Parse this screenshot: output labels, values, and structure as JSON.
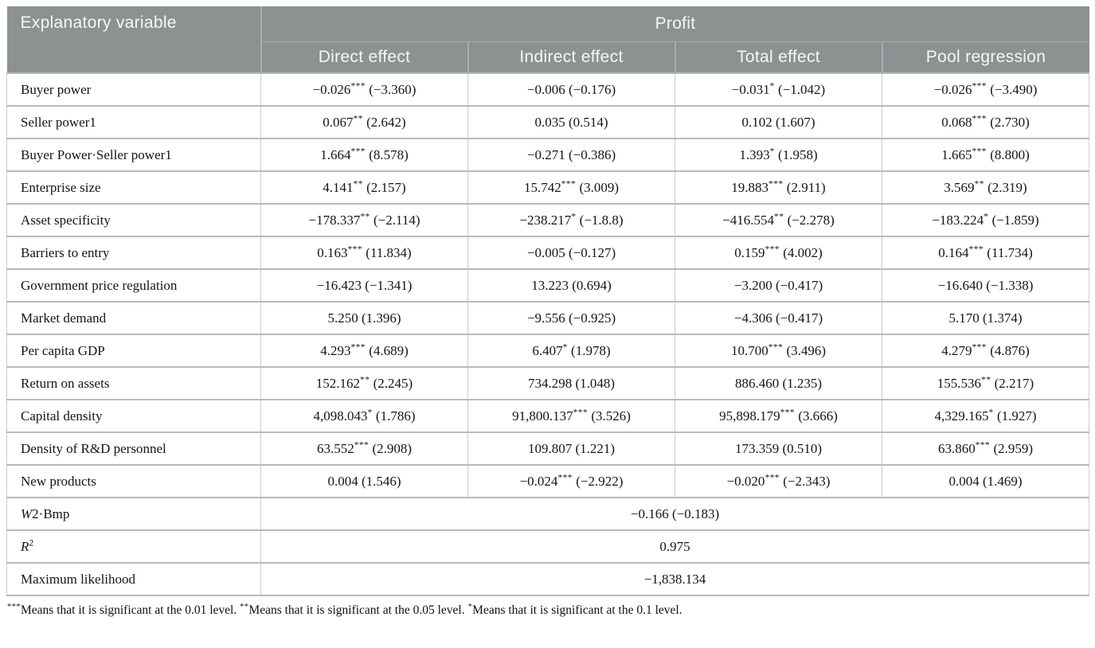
{
  "table": {
    "header": {
      "explanatory_variable": "Explanatory variable",
      "group": "Profit",
      "columns": [
        "Direct effect",
        "Indirect effect",
        "Total effect",
        "Pool regression"
      ]
    },
    "rows": [
      {
        "label": "Buyer power",
        "cells": [
          "−0.026*** (−3.360)",
          "−0.006 (−0.176)",
          "−0.031* (−1.042)",
          "−0.026*** (−3.490)"
        ]
      },
      {
        "label": "Seller power1",
        "cells": [
          "0.067** (2.642)",
          "0.035 (0.514)",
          "0.102 (1.607)",
          "0.068*** (2.730)"
        ]
      },
      {
        "label": "Buyer Power·Seller power1",
        "cells": [
          "1.664*** (8.578)",
          "−0.271 (−0.386)",
          "1.393* (1.958)",
          "1.665*** (8.800)"
        ]
      },
      {
        "label": "Enterprise size",
        "cells": [
          "4.141** (2.157)",
          "15.742*** (3.009)",
          "19.883*** (2.911)",
          "3.569** (2.319)"
        ]
      },
      {
        "label": "Asset specificity",
        "cells": [
          "−178.337** (−2.114)",
          "−238.217* (−1.8.8)",
          "−416.554** (−2.278)",
          "−183.224* (−1.859)"
        ]
      },
      {
        "label": "Barriers to entry",
        "cells": [
          "0.163*** (11.834)",
          "−0.005 (−0.127)",
          "0.159*** (4.002)",
          "0.164*** (11.734)"
        ]
      },
      {
        "label": "Government price regulation",
        "cells": [
          "−16.423 (−1.341)",
          "13.223 (0.694)",
          "−3.200 (−0.417)",
          "−16.640 (−1.338)"
        ]
      },
      {
        "label": "Market demand",
        "cells": [
          "5.250 (1.396)",
          "−9.556 (−0.925)",
          "−4.306 (−0.417)",
          "5.170 (1.374)"
        ]
      },
      {
        "label": "Per capita GDP",
        "cells": [
          "4.293*** (4.689)",
          "6.407* (1.978)",
          "10.700*** (3.496)",
          "4.279*** (4.876)"
        ]
      },
      {
        "label": "Return on assets",
        "cells": [
          "152.162** (2.245)",
          "734.298 (1.048)",
          "886.460 (1.235)",
          "155.536** (2.217)"
        ]
      },
      {
        "label": "Capital density",
        "cells": [
          "4,098.043* (1.786)",
          "91,800.137*** (3.526)",
          "95,898.179*** (3.666)",
          "4,329.165* (1.927)"
        ]
      },
      {
        "label": "Density of R&D personnel",
        "cells": [
          "63.552*** (2.908)",
          "109.807 (1.221)",
          "173.359 (0.510)",
          "63.860*** (2.959)"
        ]
      },
      {
        "label": "New products",
        "cells": [
          "0.004 (1.546)",
          "−0.024*** (−2.922)",
          "−0.020*** (−2.343)",
          "0.004 (1.469)"
        ]
      },
      {
        "label_parts": [
          {
            "text": "W",
            "italic": true
          },
          {
            "text": "2·Bmp"
          }
        ],
        "span_value": "−0.166 (−0.183)"
      },
      {
        "label_parts": [
          {
            "text": "R",
            "italic": true
          },
          {
            "text": "2",
            "sup": true
          }
        ],
        "span_value": "0.975"
      },
      {
        "label": "Maximum likelihood",
        "span_value": "−1,838.134"
      }
    ],
    "footnote": "***Means that it is significant at the 0.01 level. **Means that it is significant at the 0.05 level. *Means that it is significant at the 0.1 level."
  },
  "colors": {
    "header_bg": "#8c9192",
    "header_text": "#f6f7f7",
    "row_border": "#b7bbbb",
    "column_border": "#c9cdcd",
    "body_text": "#151515"
  }
}
